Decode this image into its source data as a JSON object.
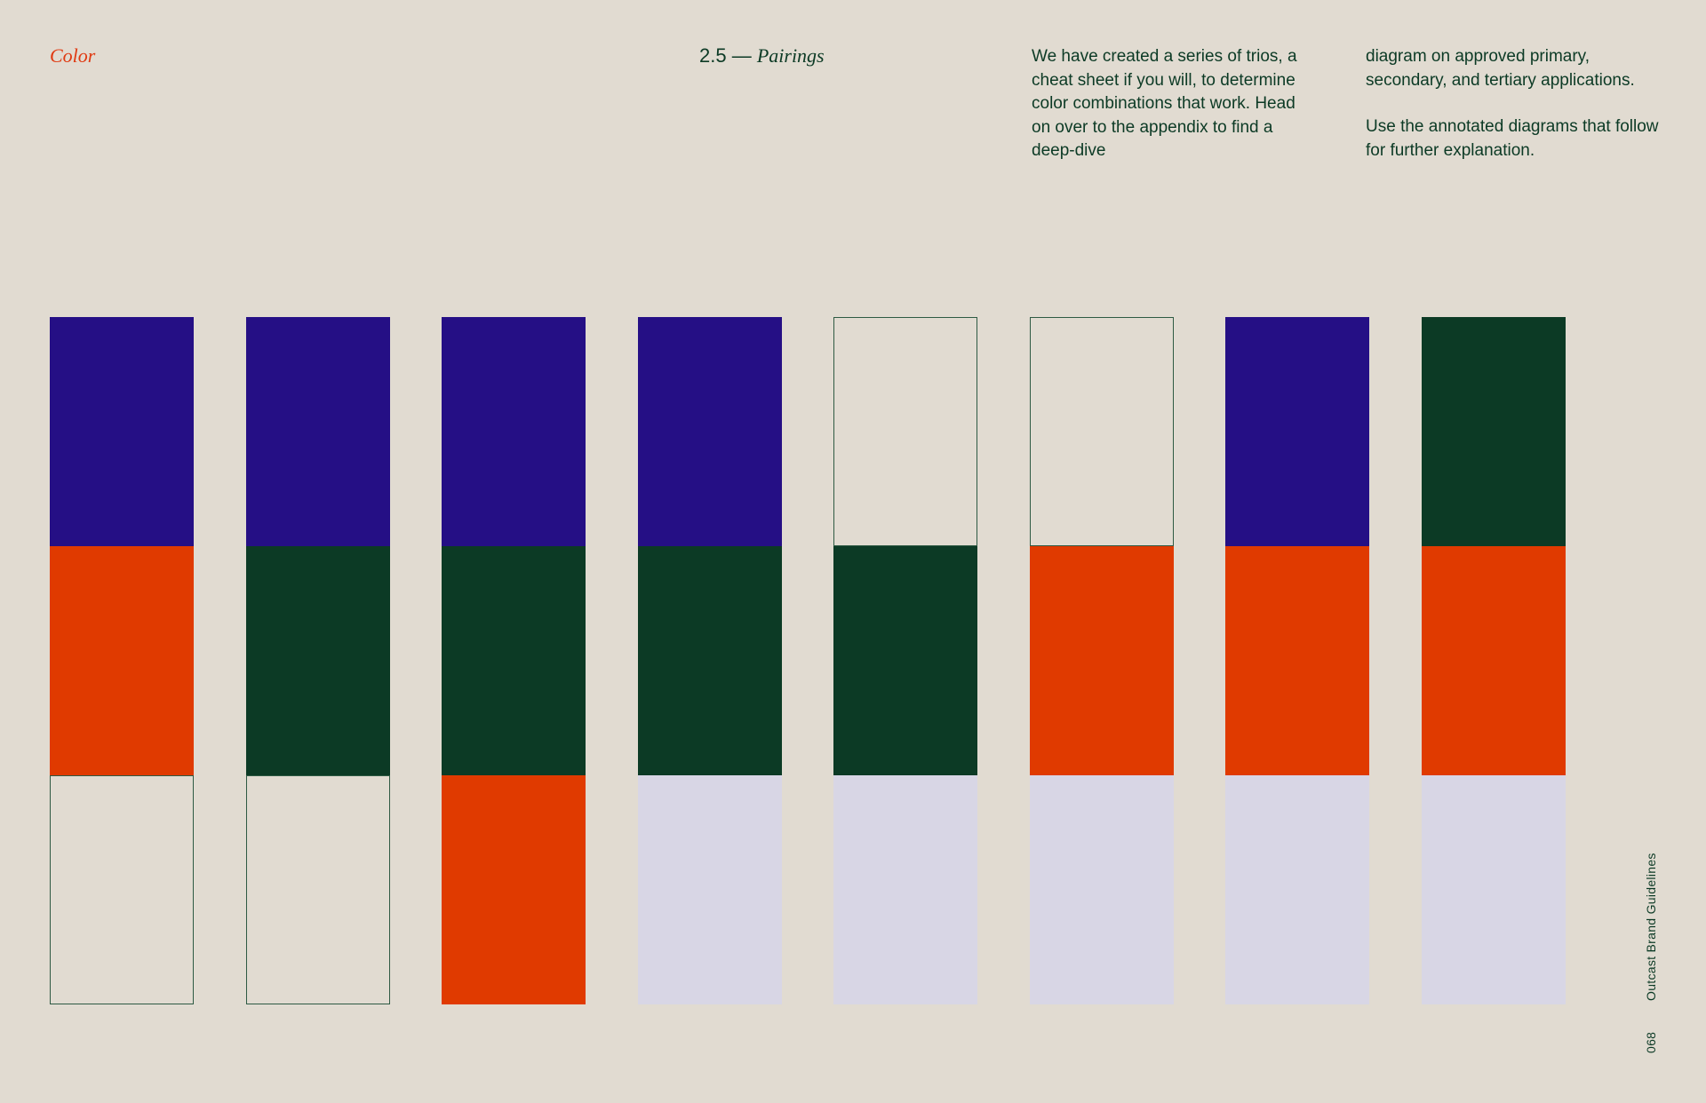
{
  "header": {
    "section_label": "Color",
    "section_number": "2.5 —",
    "section_title": "Pairings"
  },
  "intro": {
    "column_1": "We have created a series of trios, a cheat sheet if you will, to determine color combinations that work. Head on over to the appendix to find a deep-dive",
    "column_2_para_1": "diagram on approved primary, secondary, and tertiary applications.",
    "column_2_para_2": "Use the annotated diagrams that follow for further explanation."
  },
  "colors": {
    "indigo": "#250f85",
    "orange": "#e03a00",
    "forest": "#0c3a25",
    "cream": "#e1dbd1",
    "lavender": "#d8d6e5",
    "outline": "#2e5a43"
  },
  "pairings": [
    [
      "indigo",
      "orange",
      "cream"
    ],
    [
      "indigo",
      "forest",
      "cream"
    ],
    [
      "indigo",
      "forest",
      "orange"
    ],
    [
      "indigo",
      "forest",
      "lavender"
    ],
    [
      "cream",
      "forest",
      "lavender"
    ],
    [
      "cream",
      "orange",
      "lavender"
    ],
    [
      "indigo",
      "orange",
      "lavender"
    ],
    [
      "forest",
      "orange",
      "lavender"
    ]
  ],
  "footer": {
    "page_number": "068",
    "document_title": "Outcast Brand Guidelines"
  }
}
